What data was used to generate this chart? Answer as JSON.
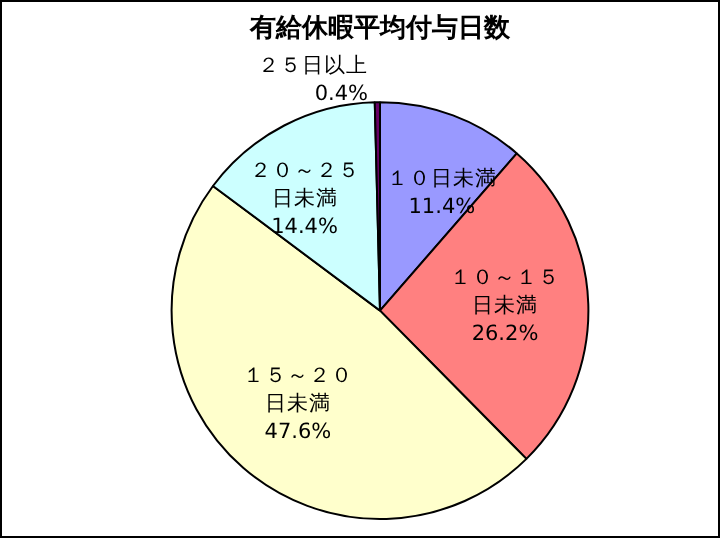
{
  "chart_data": {
    "type": "pie",
    "title": "有給休暇平均付与日数",
    "categories": [
      "１０日未満",
      "１０～１５日未満",
      "１５～２０日未満",
      "２０～２５日未満",
      "２５日以上"
    ],
    "values": [
      11.4,
      26.2,
      47.6,
      14.4,
      0.4
    ],
    "value_labels": [
      "11.4%",
      "26.2%",
      "47.6%",
      "14.4%",
      "0.4%"
    ],
    "colors": [
      "#9999ff",
      "#ff8080",
      "#ffffcc",
      "#ccffff",
      "#660066"
    ],
    "legend": false
  }
}
